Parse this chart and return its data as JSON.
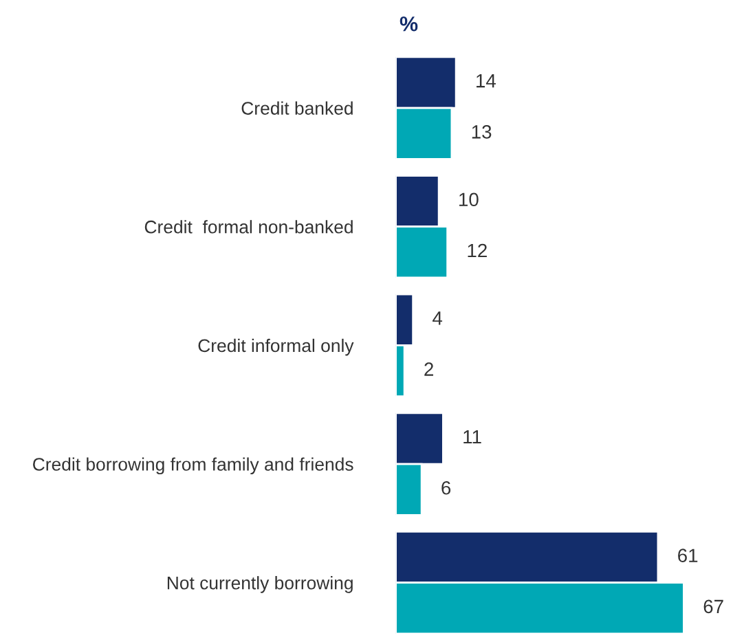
{
  "chart_data": {
    "type": "bar",
    "orientation": "horizontal",
    "title": "%",
    "categories": [
      "Credit banked",
      "Credit  formal non-banked",
      "Credit informal only",
      "Credit borrowing from family and friends",
      "Not currently borrowing"
    ],
    "series": [
      {
        "color": "#132d6b",
        "values": [
          14,
          10,
          4,
          11,
          61
        ]
      },
      {
        "color": "#00a8b5",
        "values": [
          13,
          12,
          2,
          6,
          67
        ]
      }
    ],
    "data_labels": true,
    "grid": false,
    "legend": false
  }
}
